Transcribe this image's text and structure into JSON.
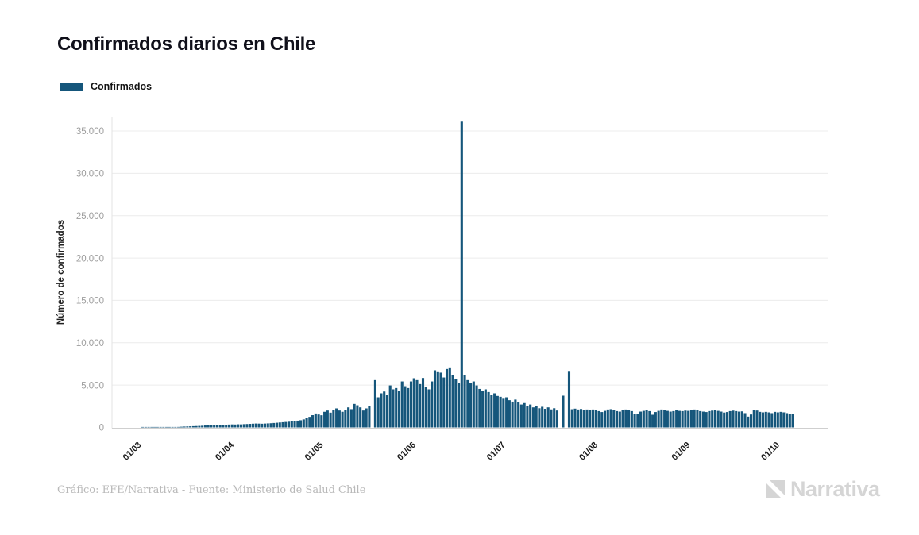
{
  "header": {
    "title": "Confirmados diarios en Chile"
  },
  "legend": {
    "label": "Confirmados",
    "swatch_color": "#15567b"
  },
  "footer": {
    "credit": "Gráfico: EFE/Narrativa - Fuente: Ministerio de Salud Chile",
    "brand": "Narrativa"
  },
  "chart_data": {
    "type": "bar",
    "title": "Confirmados diarios en Chile",
    "series_name": "Confirmados",
    "xlabel": "",
    "ylabel": "Número de confirmados",
    "ylim": [
      0,
      35000
    ],
    "grid": true,
    "legend_position": "top-left",
    "bar_color": "#15567b",
    "yticks": [
      {
        "value": 0,
        "label": "0"
      },
      {
        "value": 5000,
        "label": "5.000"
      },
      {
        "value": 10000,
        "label": "10.000"
      },
      {
        "value": 15000,
        "label": "15.000"
      },
      {
        "value": 20000,
        "label": "20.000"
      },
      {
        "value": 25000,
        "label": "25.000"
      },
      {
        "value": 30000,
        "label": "30.000"
      },
      {
        "value": 35000,
        "label": "35.000"
      }
    ],
    "xticks": [
      {
        "label": "01/03",
        "day_offset": 0
      },
      {
        "label": "01/04",
        "day_offset": 31
      },
      {
        "label": "01/05",
        "day_offset": 61
      },
      {
        "label": "01/06",
        "day_offset": 92
      },
      {
        "label": "01/07",
        "day_offset": 122
      },
      {
        "label": "01/08",
        "day_offset": 153
      },
      {
        "label": "01/09",
        "day_offset": 184
      },
      {
        "label": "01/10",
        "day_offset": 214
      }
    ],
    "first_value_day_offset": 2,
    "axis_day_span": 232,
    "values": [
      1,
      2,
      2,
      3,
      4,
      5,
      8,
      10,
      14,
      20,
      30,
      45,
      60,
      80,
      100,
      115,
      130,
      150,
      165,
      180,
      200,
      230,
      260,
      290,
      310,
      290,
      270,
      300,
      320,
      340,
      355,
      345,
      370,
      360,
      385,
      400,
      420,
      440,
      460,
      450,
      435,
      455,
      475,
      495,
      525,
      555,
      585,
      615,
      645,
      675,
      715,
      755,
      800,
      850,
      950,
      1100,
      1250,
      1450,
      1650,
      1530,
      1440,
      1850,
      2000,
      1750,
      2060,
      2250,
      2000,
      1850,
      2060,
      2370,
      2160,
      2780,
      2620,
      2370,
      2000,
      2250,
      2560,
      0,
      5590,
      3560,
      4030,
      4240,
      3810,
      4960,
      4500,
      4650,
      4340,
      5430,
      4870,
      4650,
      5430,
      5810,
      5590,
      5120,
      5840,
      4810,
      4500,
      5430,
      6750,
      6530,
      6470,
      5900,
      6900,
      7090,
      6210,
      5740,
      5270,
      36100,
      6220,
      5590,
      5270,
      5430,
      4960,
      4550,
      4340,
      4500,
      4180,
      3870,
      4030,
      3720,
      3620,
      3390,
      3560,
      3220,
      3050,
      3290,
      2950,
      2710,
      2880,
      2540,
      2710,
      2370,
      2540,
      2270,
      2440,
      2200,
      2370,
      2130,
      2270,
      2000,
      0,
      3750,
      0,
      6580,
      2150,
      2220,
      2120,
      2180,
      2060,
      2120,
      2020,
      2120,
      2060,
      1930,
      1820,
      1960,
      2120,
      2160,
      2020,
      1930,
      1870,
      2020,
      2120,
      2060,
      1930,
      1600,
      1550,
      1870,
      1960,
      2060,
      1930,
      1500,
      1820,
      1960,
      2120,
      2060,
      1960,
      1870,
      1930,
      2020,
      1960,
      1930,
      1990,
      1960,
      2060,
      2120,
      2060,
      1930,
      1870,
      1820,
      1930,
      1990,
      2060,
      1960,
      1870,
      1760,
      1820,
      1930,
      1990,
      1930,
      1870,
      1900,
      1690,
      1280,
      1530,
      2090,
      2000,
      1840,
      1780,
      1840,
      1780,
      1690,
      1840,
      1780,
      1840,
      1780,
      1690,
      1600,
      1580
    ]
  }
}
